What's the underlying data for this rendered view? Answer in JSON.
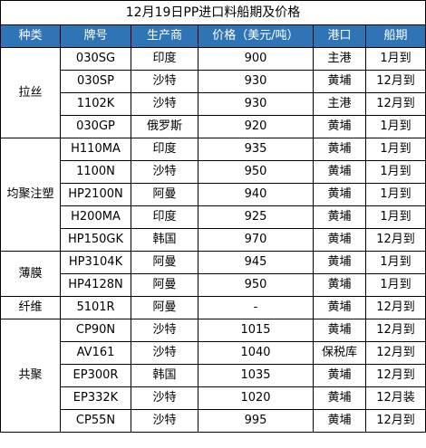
{
  "title": "12月19日PP进口料船期及价格",
  "headers": [
    "种类",
    "牌号",
    "生产商",
    "价格（美元/吨）",
    "港口",
    "船期"
  ],
  "colors": {
    "header_bg": "#2f75b5",
    "header_text": "#ffffff",
    "border": "#000000"
  },
  "groups": [
    {
      "category": "拉丝",
      "rows": [
        {
          "grade": "030SG",
          "producer": "印度",
          "price": "900",
          "port": "主港",
          "shipment": "1月到"
        },
        {
          "grade": "030SP",
          "producer": "沙特",
          "price": "930",
          "port": "黄埔",
          "shipment": "12月到"
        },
        {
          "grade": "1102K",
          "producer": "沙特",
          "price": "930",
          "port": "主港",
          "shipment": "12月到"
        },
        {
          "grade": "030GP",
          "producer": "俄罗斯",
          "price": "920",
          "port": "黄埔",
          "shipment": "1月到"
        }
      ]
    },
    {
      "category": "均聚注塑",
      "rows": [
        {
          "grade": "H110MA",
          "producer": "印度",
          "price": "935",
          "port": "黄埔",
          "shipment": "1月到"
        },
        {
          "grade": "1100N",
          "producer": "沙特",
          "price": "950",
          "port": "黄埔",
          "shipment": "1月到"
        },
        {
          "grade": "HP2100N",
          "producer": "阿曼",
          "price": "940",
          "port": "黄埔",
          "shipment": "1月到"
        },
        {
          "grade": "H200MA",
          "producer": "印度",
          "price": "925",
          "port": "黄埔",
          "shipment": "1月到"
        },
        {
          "grade": "HP150GK",
          "producer": "韩国",
          "price": "970",
          "port": "黄埔",
          "shipment": "12月到"
        }
      ]
    },
    {
      "category": "薄膜",
      "rows": [
        {
          "grade": "HP3104K",
          "producer": "阿曼",
          "price": "945",
          "port": "黄埔",
          "shipment": "1月到"
        },
        {
          "grade": "HP4128N",
          "producer": "阿曼",
          "price": "950",
          "port": "黄埔",
          "shipment": "1月到"
        }
      ]
    },
    {
      "category": "纤维",
      "rows": [
        {
          "grade": "5101R",
          "producer": "阿曼",
          "price": "-",
          "port": "黄埔",
          "shipment": "12月到"
        }
      ]
    },
    {
      "category": "共聚",
      "rows": [
        {
          "grade": "CP90N",
          "producer": "沙特",
          "price": "1015",
          "port": "黄埔",
          "shipment": "12月到"
        },
        {
          "grade": "AV161",
          "producer": "沙特",
          "price": "1040",
          "port": "保税库",
          "shipment": "12月到"
        },
        {
          "grade": "EP300R",
          "producer": "韩国",
          "price": "1035",
          "port": "黄埔",
          "shipment": "12月到"
        },
        {
          "grade": "EP332K",
          "producer": "沙特",
          "price": "1020",
          "port": "黄埔",
          "shipment": "12月装"
        },
        {
          "grade": "CP55N",
          "producer": "沙特",
          "price": "995",
          "port": "黄埔",
          "shipment": "12月到"
        }
      ]
    }
  ]
}
